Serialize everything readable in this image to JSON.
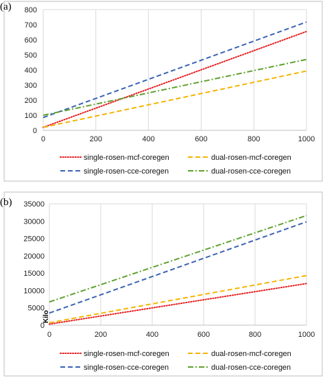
{
  "chart_data": [
    {
      "panel_label": "(a)",
      "type": "line",
      "xlim": [
        0,
        1000
      ],
      "ylim": [
        0,
        800
      ],
      "xticks": [
        "0",
        "200",
        "400",
        "600",
        "800",
        "1000"
      ],
      "yticks": [
        "0",
        "100",
        "200",
        "300",
        "400",
        "500",
        "600",
        "700",
        "800"
      ],
      "xlabel": "",
      "ylabel": "",
      "grid": "vertical",
      "legend_position": "bottom",
      "series": [
        {
          "name": "single-rosen-mcf-coregen",
          "color": "#e41a1c",
          "style": "dotted",
          "x": [
            0,
            1000
          ],
          "y": [
            20,
            655
          ]
        },
        {
          "name": "dual-rosen-mcf-coregen",
          "color": "#f5b400",
          "style": "dashed",
          "x": [
            0,
            1000
          ],
          "y": [
            20,
            393
          ]
        },
        {
          "name": "single-rosen-cce-coregen",
          "color": "#3a62b4",
          "style": "dashed",
          "x": [
            0,
            1000
          ],
          "y": [
            85,
            718
          ]
        },
        {
          "name": "dual-rosen-cce-coregen",
          "color": "#5fa02e",
          "style": "dashdot",
          "x": [
            0,
            1000
          ],
          "y": [
            100,
            470
          ]
        }
      ]
    },
    {
      "panel_label": "(b)",
      "type": "line",
      "xlim": [
        0,
        1000
      ],
      "ylim": [
        0,
        35000
      ],
      "xticks": [
        "0",
        "200",
        "400",
        "600",
        "800",
        "1000"
      ],
      "yticks": [
        "0",
        "5000",
        "10000",
        "15000",
        "20000",
        "25000",
        "30000",
        "35000"
      ],
      "xlabel": "",
      "ylabel": "Kilo",
      "grid": "vertical",
      "legend_position": "bottom",
      "series": [
        {
          "name": "single-rosen-mcf-coregen",
          "color": "#e41a1c",
          "style": "dotted",
          "x": [
            0,
            1000
          ],
          "y": [
            300,
            12000
          ]
        },
        {
          "name": "dual-rosen-mcf-coregen",
          "color": "#f5b400",
          "style": "dashed",
          "x": [
            0,
            1000
          ],
          "y": [
            700,
            14300
          ]
        },
        {
          "name": "single-rosen-cce-coregen",
          "color": "#3a62b4",
          "style": "dashed",
          "x": [
            0,
            1000
          ],
          "y": [
            3500,
            29800
          ]
        },
        {
          "name": "dual-rosen-cce-coregen",
          "color": "#5fa02e",
          "style": "dashdot",
          "x": [
            0,
            1000
          ],
          "y": [
            6700,
            31600
          ]
        }
      ]
    }
  ]
}
